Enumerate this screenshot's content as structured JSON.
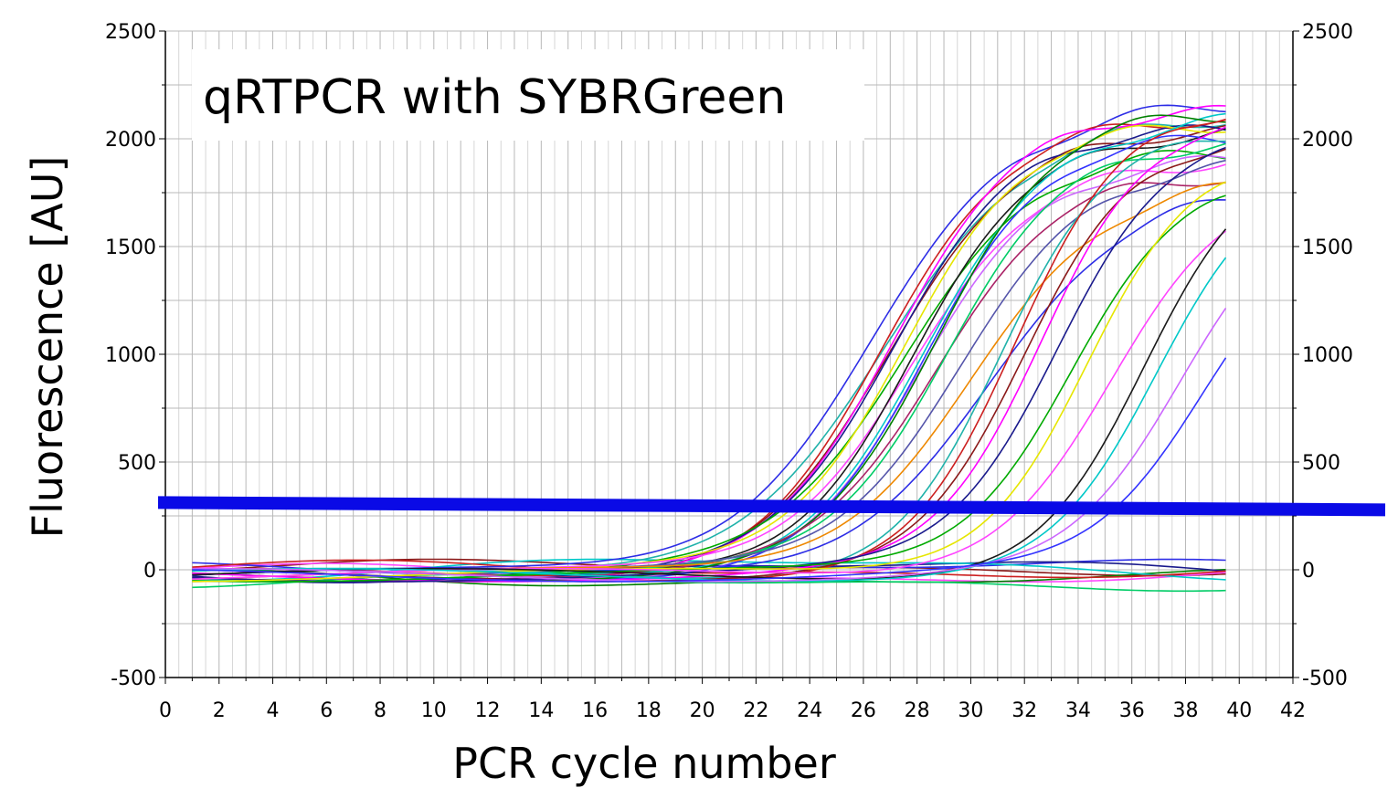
{
  "chart_data": {
    "type": "line",
    "title": "qRTPCR with SYBRGreen",
    "xlabel": "PCR cycle number",
    "ylabel": "Fluorescence [AU]",
    "xlim": [
      0,
      42
    ],
    "ylim": [
      -500,
      2500
    ],
    "x_ticks": [
      "0",
      "2",
      "4",
      "6",
      "8",
      "10",
      "12",
      "14",
      "16",
      "18",
      "20",
      "22",
      "24",
      "26",
      "28",
      "30",
      "32",
      "34",
      "36",
      "38",
      "40",
      "42"
    ],
    "y_ticks": [
      "-500",
      "0",
      "500",
      "1000",
      "1500",
      "2000",
      "2500"
    ],
    "y_ticks_right": [
      "-500",
      "0",
      "500",
      "1000",
      "1500",
      "2000",
      "2500"
    ],
    "grid": true,
    "cycles": [
      1,
      39.5
    ],
    "threshold": {
      "value": 295,
      "color": "#0a0ae6"
    },
    "series_colors": [
      "#2d2de6",
      "#20b2aa",
      "#cc1f1f",
      "#8b1a1a",
      "#ff00ff",
      "#1a1a8c",
      "#00aa00",
      "#e6e600",
      "#ff44ff",
      "#1a1a1a",
      "#00c8c8",
      "#cc66ff",
      "#3333ff",
      "#008000",
      "#aa2266",
      "#00cc66",
      "#5555aa",
      "#ee8800"
    ],
    "amplified_series": [
      {
        "ct": 21.3,
        "plateau": 2190,
        "slope": 0.38
      },
      {
        "ct": 21.6,
        "plateau": 2120,
        "slope": 0.36
      },
      {
        "ct": 22.3,
        "plateau": 2100,
        "slope": 0.42
      },
      {
        "ct": 22.5,
        "plateau": 2050,
        "slope": 0.4
      },
      {
        "ct": 22.8,
        "plateau": 2150,
        "slope": 0.42
      },
      {
        "ct": 23.0,
        "plateau": 2080,
        "slope": 0.43
      },
      {
        "ct": 23.2,
        "plateau": 2000,
        "slope": 0.4
      },
      {
        "ct": 23.4,
        "plateau": 2130,
        "slope": 0.44
      },
      {
        "ct": 23.6,
        "plateau": 1950,
        "slope": 0.42
      },
      {
        "ct": 23.8,
        "plateau": 2060,
        "slope": 0.45
      },
      {
        "ct": 24.0,
        "plateau": 2100,
        "slope": 0.43
      },
      {
        "ct": 24.2,
        "plateau": 1900,
        "slope": 0.44
      },
      {
        "ct": 24.4,
        "plateau": 2010,
        "slope": 0.45
      },
      {
        "ct": 24.6,
        "plateau": 2150,
        "slope": 0.44
      },
      {
        "ct": 24.9,
        "plateau": 1880,
        "slope": 0.43
      },
      {
        "ct": 25.2,
        "plateau": 2040,
        "slope": 0.45
      },
      {
        "ct": 25.5,
        "plateau": 1950,
        "slope": 0.42
      },
      {
        "ct": 25.8,
        "plateau": 1850,
        "slope": 0.4
      },
      {
        "ct": 26.3,
        "plateau": 1800,
        "slope": 0.38
      },
      {
        "ct": 27.5,
        "plateau": 2050,
        "slope": 0.5
      },
      {
        "ct": 28.0,
        "plateau": 2150,
        "slope": 0.5
      },
      {
        "ct": 28.5,
        "plateau": 2000,
        "slope": 0.5
      },
      {
        "ct": 29.0,
        "plateau": 2120,
        "slope": 0.5
      },
      {
        "ct": 29.5,
        "plateau": 2080,
        "slope": 0.48
      },
      {
        "ct": 30.2,
        "plateau": 1900,
        "slope": 0.48
      },
      {
        "ct": 30.8,
        "plateau": 2000,
        "slope": 0.5
      },
      {
        "ct": 31.5,
        "plateau": 1850,
        "slope": 0.45
      },
      {
        "ct": 33.0,
        "plateau": 1950,
        "slope": 0.5
      },
      {
        "ct": 33.6,
        "plateau": 1850,
        "slope": 0.5
      },
      {
        "ct": 34.5,
        "plateau": 1750,
        "slope": 0.48
      },
      {
        "ct": 35.5,
        "plateau": 1650,
        "slope": 0.48
      }
    ],
    "baseline_series": [
      {
        "offset": 10,
        "wave": 25
      },
      {
        "offset": -20,
        "wave": 35
      },
      {
        "offset": -40,
        "wave": 30
      },
      {
        "offset": 15,
        "wave": 20
      },
      {
        "offset": -5,
        "wave": 40
      },
      {
        "offset": 5,
        "wave": 45
      },
      {
        "offset": -60,
        "wave": 25
      },
      {
        "offset": 0,
        "wave": 30
      }
    ]
  }
}
